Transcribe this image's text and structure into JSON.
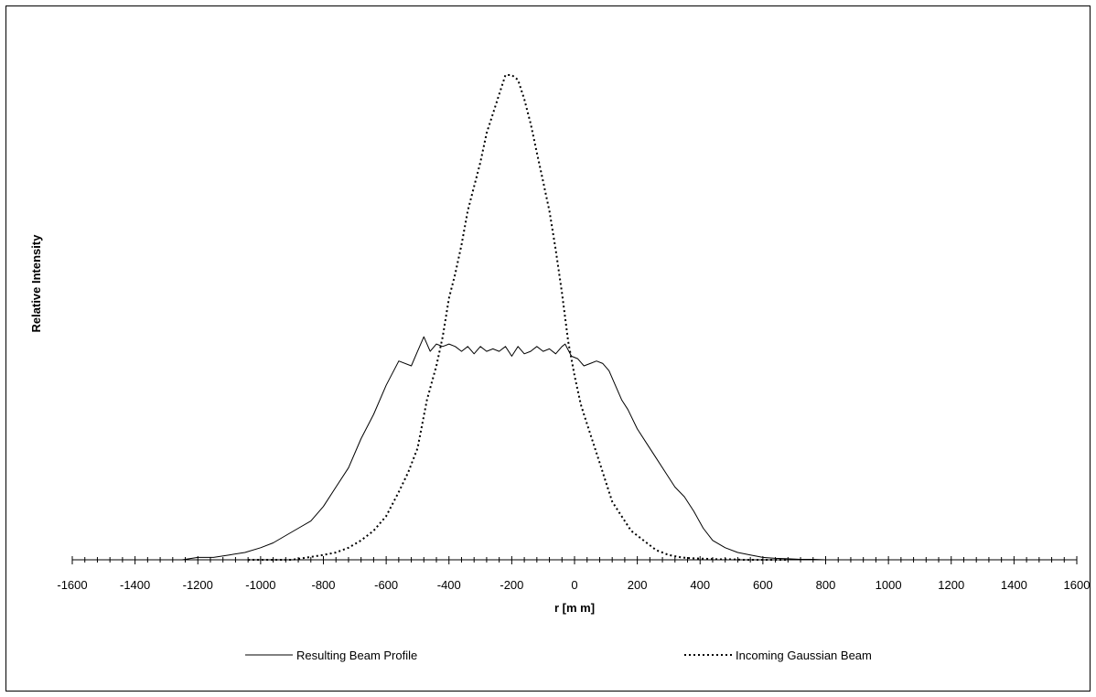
{
  "chart_data": {
    "type": "line",
    "title": "",
    "xlabel": "r [m m]",
    "ylabel": "Relative Intensity",
    "xlim": [
      -1600,
      1600
    ],
    "ylim": [
      0,
      1
    ],
    "xticks": [
      -1600,
      -1400,
      -1200,
      -1000,
      -800,
      -600,
      -400,
      -200,
      0,
      200,
      400,
      600,
      800,
      1000,
      1200,
      1400,
      1600
    ],
    "xtick_labels": [
      "-1600",
      "-1400",
      "-1200",
      "-1000",
      "-800",
      "-600",
      "-400",
      "-200",
      "0",
      "200",
      "400",
      "600",
      "800",
      "1000",
      "1200",
      "1400",
      "1600"
    ],
    "y_tick_labels_shown": false,
    "grid": false,
    "legend_position": "bottom",
    "series": [
      {
        "name": "Resulting Beam Profile",
        "style": "solid",
        "x": [
          -1340,
          -1300,
          -1250,
          -1200,
          -1150,
          -1100,
          -1050,
          -1000,
          -960,
          -920,
          -880,
          -840,
          -800,
          -760,
          -720,
          -680,
          -640,
          -600,
          -560,
          -520,
          -500,
          -480,
          -460,
          -440,
          -420,
          -400,
          -380,
          -360,
          -340,
          -320,
          -300,
          -280,
          -260,
          -240,
          -220,
          -200,
          -180,
          -160,
          -140,
          -120,
          -100,
          -80,
          -60,
          -40,
          -30,
          -10,
          10,
          30,
          50,
          70,
          90,
          110,
          130,
          150,
          170,
          200,
          230,
          260,
          290,
          320,
          350,
          380,
          410,
          440,
          480,
          520,
          560,
          600,
          640,
          680,
          720,
          760,
          800,
          850,
          900,
          960
        ],
        "values": [
          0.0,
          0.0,
          0.0,
          0.005,
          0.005,
          0.01,
          0.015,
          0.025,
          0.035,
          0.05,
          0.065,
          0.08,
          0.11,
          0.15,
          0.19,
          0.25,
          0.3,
          0.36,
          0.41,
          0.4,
          0.43,
          0.46,
          0.43,
          0.445,
          0.44,
          0.445,
          0.44,
          0.43,
          0.44,
          0.425,
          0.44,
          0.43,
          0.435,
          0.43,
          0.44,
          0.42,
          0.44,
          0.425,
          0.43,
          0.44,
          0.43,
          0.435,
          0.425,
          0.44,
          0.445,
          0.42,
          0.415,
          0.4,
          0.405,
          0.41,
          0.405,
          0.39,
          0.36,
          0.33,
          0.31,
          0.27,
          0.24,
          0.21,
          0.18,
          0.15,
          0.13,
          0.1,
          0.065,
          0.04,
          0.025,
          0.015,
          0.01,
          0.005,
          0.003,
          0.002,
          0.001,
          0.001,
          0.0,
          0.0,
          0.0,
          0.0
        ]
      },
      {
        "name": "Incoming Gaussian Beam",
        "style": "dotted",
        "x": [
          -1040,
          -1000,
          -950,
          -900,
          -850,
          -800,
          -760,
          -720,
          -680,
          -640,
          -600,
          -560,
          -530,
          -500,
          -470,
          -440,
          -420,
          -400,
          -380,
          -360,
          -340,
          -320,
          -300,
          -280,
          -260,
          -240,
          -220,
          -200,
          -180,
          -160,
          -140,
          -120,
          -100,
          -80,
          -60,
          -40,
          -20,
          0,
          20,
          40,
          60,
          80,
          100,
          120,
          140,
          160,
          180,
          200,
          230,
          260,
          300,
          340,
          380,
          420,
          460,
          500,
          540,
          580,
          620,
          680
        ],
        "values": [
          0.0,
          0.0,
          0.0,
          0.0,
          0.005,
          0.01,
          0.015,
          0.025,
          0.04,
          0.06,
          0.09,
          0.14,
          0.18,
          0.23,
          0.33,
          0.4,
          0.46,
          0.54,
          0.59,
          0.65,
          0.72,
          0.77,
          0.82,
          0.88,
          0.92,
          0.96,
          1.0,
          1.0,
          0.99,
          0.95,
          0.9,
          0.84,
          0.78,
          0.72,
          0.64,
          0.55,
          0.45,
          0.38,
          0.32,
          0.28,
          0.24,
          0.2,
          0.16,
          0.12,
          0.1,
          0.08,
          0.06,
          0.05,
          0.035,
          0.02,
          0.01,
          0.005,
          0.003,
          0.002,
          0.001,
          0.001,
          0.0,
          0.0,
          0.0,
          0.0
        ]
      }
    ]
  }
}
